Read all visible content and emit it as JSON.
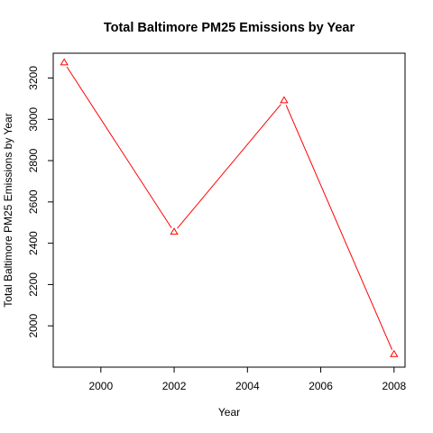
{
  "chart_data": {
    "type": "line",
    "title": "Total Baltimore PM25 Emissions by Year",
    "xlabel": "Year",
    "ylabel": "Total Baltimore PM25 Emissions by Year",
    "x": [
      1999,
      2002,
      2005,
      2008
    ],
    "series": [
      {
        "values": [
          3274,
          2454,
          3091,
          1862
        ],
        "color": "#ff0000",
        "marker": "triangle-open"
      }
    ],
    "xlim": [
      1998.7,
      2008.3
    ],
    "ylim": [
      1800,
      3320
    ],
    "xticks": [
      2000,
      2002,
      2004,
      2006,
      2008
    ],
    "yticks": [
      2000,
      2200,
      2400,
      2600,
      2800,
      3000,
      3200
    ],
    "grid": false,
    "legend": "none"
  }
}
